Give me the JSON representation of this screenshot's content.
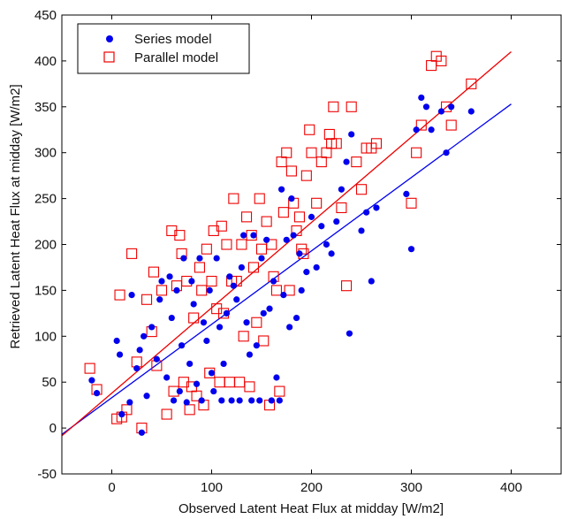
{
  "chart_data": {
    "type": "scatter",
    "xlabel": "Observed Latent Heat Flux at midday [W/m2]",
    "ylabel": "Retrieved Latent Heat Flux at midday [W/m2]",
    "xlim": [
      -50,
      450
    ],
    "ylim": [
      -50,
      450
    ],
    "xticks": [
      0,
      100,
      200,
      300,
      400
    ],
    "yticks": [
      -50,
      0,
      50,
      100,
      150,
      200,
      250,
      300,
      350,
      400,
      450
    ],
    "grid": false,
    "legend_position": "top-left",
    "colors": {
      "series": "#0000ee",
      "parallel": "#ee0000",
      "axis": "#000000"
    },
    "series": [
      {
        "name": "Series model",
        "marker": "filled-circle",
        "color": "#0000ee",
        "fit": {
          "slope": 0.8,
          "intercept": 33
        },
        "x": [
          -20,
          -15,
          5,
          8,
          10,
          18,
          20,
          25,
          28,
          30,
          32,
          35,
          40,
          45,
          48,
          50,
          55,
          58,
          60,
          62,
          65,
          68,
          70,
          72,
          75,
          78,
          80,
          82,
          85,
          88,
          90,
          92,
          95,
          98,
          100,
          102,
          105,
          108,
          110,
          112,
          115,
          118,
          120,
          122,
          125,
          128,
          130,
          132,
          135,
          138,
          140,
          142,
          145,
          148,
          150,
          152,
          155,
          158,
          160,
          162,
          165,
          168,
          170,
          172,
          175,
          178,
          180,
          182,
          185,
          188,
          190,
          195,
          200,
          205,
          210,
          215,
          220,
          225,
          230,
          235,
          238,
          240,
          250,
          255,
          260,
          265,
          295,
          300,
          305,
          310,
          315,
          320,
          330,
          335,
          340,
          360
        ],
        "y": [
          52,
          38,
          95,
          80,
          15,
          28,
          145,
          65,
          85,
          -5,
          100,
          35,
          110,
          75,
          140,
          160,
          55,
          165,
          120,
          30,
          150,
          40,
          90,
          185,
          28,
          70,
          160,
          135,
          48,
          185,
          30,
          115,
          95,
          150,
          60,
          40,
          185,
          110,
          30,
          70,
          125,
          165,
          30,
          155,
          140,
          30,
          175,
          210,
          115,
          80,
          30,
          210,
          90,
          30,
          185,
          125,
          205,
          130,
          30,
          160,
          55,
          30,
          260,
          145,
          205,
          110,
          250,
          210,
          120,
          190,
          150,
          170,
          230,
          175,
          220,
          200,
          190,
          225,
          260,
          290,
          103,
          320,
          215,
          235,
          160,
          240,
          255,
          195,
          325,
          360,
          350,
          325,
          345,
          300,
          350,
          345
        ]
      },
      {
        "name": "Parallel model",
        "marker": "open-square",
        "color": "#ee0000",
        "fit": {
          "slope": 0.93,
          "intercept": 38
        },
        "x": [
          -22,
          -15,
          5,
          8,
          10,
          15,
          20,
          25,
          30,
          35,
          40,
          42,
          45,
          50,
          55,
          60,
          62,
          65,
          68,
          70,
          72,
          75,
          78,
          80,
          82,
          85,
          88,
          90,
          92,
          95,
          98,
          100,
          102,
          105,
          108,
          110,
          112,
          115,
          118,
          120,
          122,
          125,
          128,
          130,
          132,
          135,
          138,
          140,
          142,
          145,
          148,
          150,
          152,
          155,
          158,
          160,
          162,
          165,
          168,
          170,
          172,
          175,
          178,
          180,
          182,
          185,
          188,
          190,
          192,
          195,
          198,
          200,
          205,
          210,
          215,
          218,
          220,
          222,
          225,
          230,
          235,
          240,
          245,
          250,
          255,
          260,
          265,
          300,
          305,
          310,
          320,
          325,
          330,
          335,
          340,
          360
        ],
        "y": [
          65,
          42,
          10,
          145,
          12,
          20,
          190,
          72,
          0,
          140,
          105,
          170,
          68,
          150,
          15,
          215,
          40,
          155,
          210,
          190,
          50,
          160,
          20,
          45,
          120,
          35,
          175,
          150,
          25,
          195,
          60,
          160,
          215,
          130,
          50,
          220,
          125,
          200,
          50,
          160,
          250,
          160,
          50,
          200,
          100,
          230,
          45,
          210,
          175,
          115,
          250,
          195,
          95,
          225,
          25,
          200,
          165,
          150,
          40,
          290,
          235,
          300,
          150,
          280,
          245,
          215,
          230,
          195,
          190,
          275,
          325,
          300,
          245,
          290,
          300,
          320,
          310,
          350,
          310,
          240,
          155,
          350,
          290,
          260,
          305,
          305,
          310,
          245,
          300,
          330,
          395,
          405,
          400,
          350,
          330,
          375
        ]
      }
    ]
  }
}
